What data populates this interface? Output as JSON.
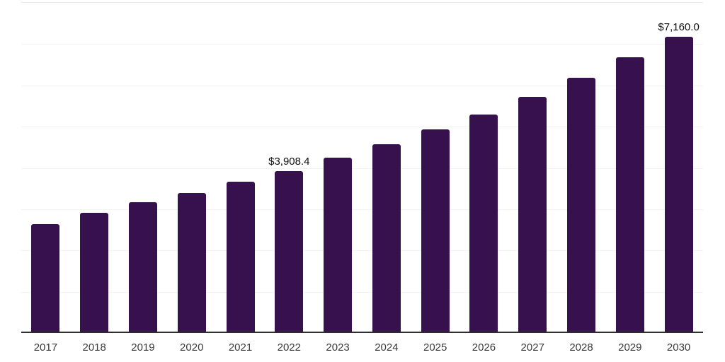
{
  "chart_data": {
    "type": "bar",
    "title": "",
    "xlabel": "",
    "ylabel": "",
    "categories": [
      "2017",
      "2018",
      "2019",
      "2020",
      "2021",
      "2022",
      "2023",
      "2024",
      "2025",
      "2026",
      "2027",
      "2028",
      "2029",
      "2030"
    ],
    "values": [
      2620,
      2895,
      3150,
      3375,
      3650,
      3908.4,
      4230,
      4557,
      4916,
      5276,
      5704,
      6167,
      6664,
      7160
    ],
    "labeled_points": [
      {
        "index": 5,
        "label": "$3,908.4"
      },
      {
        "index": 13,
        "label": "$7,160.0"
      }
    ],
    "ylim": [
      0,
      8000
    ],
    "grid_step": 1000,
    "grid": true,
    "legend": false,
    "colors": {
      "bar": "#36114D",
      "axis_line": "#2f2f2f",
      "gridline": "#f3f3f3",
      "plot_top_border": "#e9e9e9",
      "tick_label": "#3a3a3a",
      "data_label": "#111111",
      "background": "#ffffff"
    }
  }
}
